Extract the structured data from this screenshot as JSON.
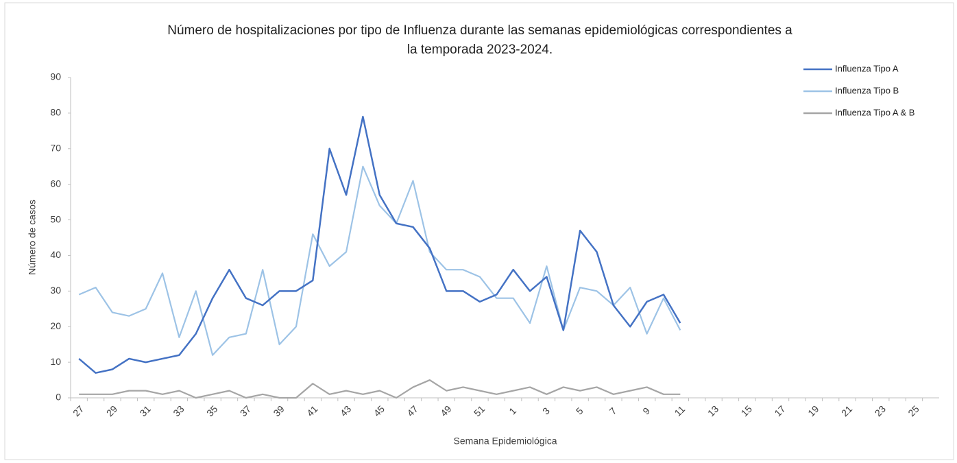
{
  "chart_data": {
    "type": "line",
    "title": [
      "Número de hospitalizaciones por tipo de Influenza durante las semanas epidemiológicas correspondientes a",
      "la temporada 2023-2024."
    ],
    "x_label": "Semana Epidemiológica",
    "y_label": "Número de casos",
    "categories": [
      "27",
      null,
      "29",
      null,
      "31",
      null,
      "33",
      null,
      "35",
      null,
      "37",
      null,
      "39",
      null,
      "41",
      null,
      "43",
      null,
      "45",
      null,
      "47",
      null,
      "49",
      null,
      "51",
      null,
      "1",
      null,
      "3",
      null,
      "5",
      null,
      "7",
      null,
      "9",
      null,
      "11",
      null,
      "13",
      null,
      "15",
      null,
      "17",
      null,
      "19",
      null,
      "21",
      null,
      "23",
      null,
      "25",
      null
    ],
    "series": [
      {
        "name": "Influenza Tipo A",
        "color": "#4472c4",
        "values": [
          11,
          7,
          8,
          11,
          10,
          11,
          12,
          18,
          28,
          36,
          28,
          26,
          30,
          30,
          33,
          70,
          57,
          79,
          57,
          49,
          48,
          42,
          30,
          30,
          27,
          29,
          36,
          30,
          34,
          19,
          47,
          41,
          26,
          20,
          27,
          29,
          21,
          null,
          null,
          null,
          null,
          null,
          null,
          null,
          null,
          null,
          null,
          null,
          null,
          null,
          null,
          null
        ]
      },
      {
        "name": "Influenza Tipo B",
        "color": "#9dc3e6",
        "values": [
          29,
          31,
          24,
          23,
          25,
          35,
          17,
          30,
          12,
          17,
          18,
          36,
          15,
          20,
          46,
          37,
          41,
          65,
          54,
          49,
          61,
          41,
          36,
          36,
          34,
          28,
          28,
          21,
          37,
          19,
          31,
          30,
          26,
          31,
          18,
          28,
          19,
          null,
          null,
          null,
          null,
          null,
          null,
          null,
          null,
          null,
          null,
          null,
          null,
          null,
          null,
          null
        ]
      },
      {
        "name": "Influenza Tipo A & B",
        "color": "#a5a5a5",
        "values": [
          1,
          1,
          1,
          2,
          2,
          1,
          2,
          0,
          1,
          2,
          0,
          1,
          0,
          0,
          4,
          1,
          2,
          1,
          2,
          0,
          3,
          5,
          2,
          3,
          2,
          1,
          2,
          3,
          1,
          3,
          2,
          3,
          1,
          2,
          3,
          1,
          1,
          null,
          null,
          null,
          null,
          null,
          null,
          null,
          null,
          null,
          null,
          null,
          null,
          null,
          null,
          null
        ]
      }
    ],
    "ylim": [
      0,
      90
    ],
    "yticks": [
      0,
      10,
      20,
      30,
      40,
      50,
      60,
      70,
      80,
      90
    ],
    "grid": false,
    "legend": "top-right"
  }
}
